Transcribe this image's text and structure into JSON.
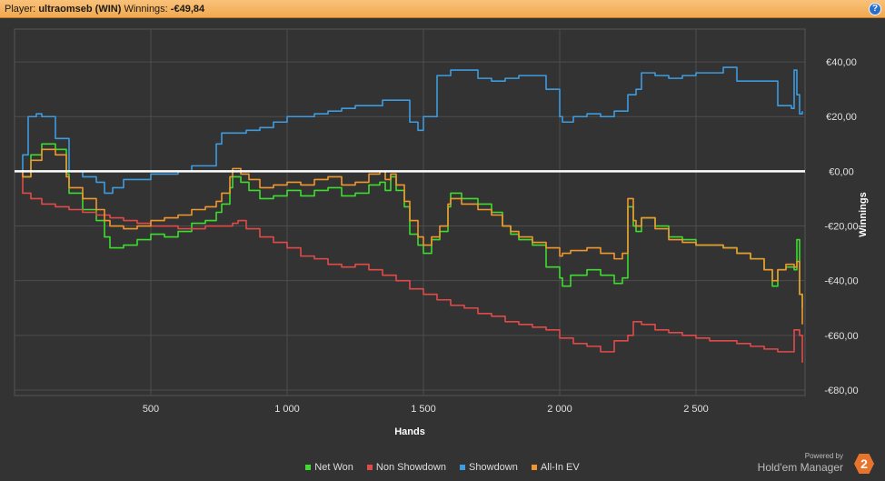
{
  "header": {
    "player_label": "Player:",
    "player_name": "ultraomseb (WIN)",
    "winnings_label": "Winnings:",
    "winnings_value": "-€49,84",
    "help_glyph": "?"
  },
  "chart_data": {
    "type": "line",
    "xlabel": "Hands",
    "ylabel": "Winnings",
    "xlim": [
      0,
      2900
    ],
    "ylim": [
      -82,
      52
    ],
    "x_ticks": [
      500,
      1000,
      1500,
      2000,
      2500
    ],
    "x_tick_labels": [
      "500",
      "1 000",
      "1 500",
      "2 000",
      "2 500"
    ],
    "y_ticks": [
      40,
      20,
      0,
      -20,
      -40,
      -60,
      -80
    ],
    "y_tick_labels": [
      "€40,00",
      "€20,00",
      "€0,00",
      "-€20,00",
      "-€40,00",
      "-€60,00",
      "-€80,00"
    ],
    "grid": true,
    "legend_position": "bottom",
    "series": [
      {
        "name": "Net Won",
        "color": "#3ddc2e",
        "x": [
          0,
          30,
          60,
          100,
          150,
          190,
          200,
          250,
          300,
          330,
          350,
          400,
          450,
          500,
          550,
          600,
          650,
          700,
          740,
          760,
          790,
          800,
          830,
          860,
          900,
          950,
          1000,
          1050,
          1100,
          1150,
          1200,
          1250,
          1300,
          1340,
          1360,
          1380,
          1400,
          1430,
          1450,
          1480,
          1500,
          1530,
          1560,
          1590,
          1600,
          1640,
          1700,
          1750,
          1790,
          1820,
          1850,
          1900,
          1950,
          2000,
          2010,
          2040,
          2100,
          2150,
          2200,
          2230,
          2250,
          2270,
          2280,
          2300,
          2350,
          2400,
          2450,
          2500,
          2550,
          2600,
          2650,
          2700,
          2750,
          2780,
          2800,
          2830,
          2860,
          2870,
          2880,
          2890
        ],
        "y": [
          0,
          -2,
          6,
          10,
          8,
          -1,
          -8,
          -14,
          -18,
          -24,
          -28,
          -27,
          -25,
          -23,
          -24,
          -22,
          -19,
          -18,
          -15,
          -12,
          -6,
          -2,
          -4,
          -7,
          -10,
          -9,
          -7,
          -9,
          -7,
          -6,
          -9,
          -8,
          -5,
          -4,
          -7,
          -2,
          -7,
          -13,
          -23,
          -27,
          -30,
          -25,
          -22,
          -13,
          -8,
          -10,
          -12,
          -15,
          -20,
          -23,
          -25,
          -27,
          -35,
          -39,
          -42,
          -38,
          -36,
          -38,
          -41,
          -39,
          -13,
          -20,
          -22,
          -17,
          -20,
          -24,
          -25,
          -27,
          -27,
          -28,
          -30,
          -32,
          -36,
          -42,
          -36,
          -35,
          -36,
          -25,
          -45,
          -50
        ]
      },
      {
        "name": "Non Showdown",
        "color": "#e24a4a",
        "x": [
          0,
          30,
          60,
          100,
          150,
          200,
          250,
          300,
          350,
          400,
          450,
          500,
          550,
          600,
          650,
          700,
          750,
          800,
          820,
          850,
          900,
          950,
          1000,
          1050,
          1100,
          1150,
          1200,
          1250,
          1300,
          1350,
          1400,
          1450,
          1500,
          1550,
          1600,
          1650,
          1700,
          1750,
          1800,
          1850,
          1900,
          1950,
          2000,
          2050,
          2100,
          2150,
          2200,
          2250,
          2270,
          2300,
          2350,
          2400,
          2450,
          2500,
          2550,
          2600,
          2650,
          2700,
          2750,
          2800,
          2850,
          2860,
          2880,
          2890
        ],
        "y": [
          0,
          -8,
          -10,
          -12,
          -13,
          -14,
          -15,
          -16,
          -17,
          -18,
          -19,
          -20,
          -20,
          -21,
          -21,
          -20,
          -20,
          -19,
          -18,
          -21,
          -24,
          -26,
          -28,
          -31,
          -32,
          -34,
          -35,
          -34,
          -36,
          -38,
          -40,
          -43,
          -45,
          -47,
          -49,
          -50,
          -52,
          -53,
          -55,
          -56,
          -57,
          -58,
          -61,
          -63,
          -64,
          -66,
          -62,
          -60,
          -55,
          -56,
          -58,
          -59,
          -60,
          -61,
          -62,
          -62,
          -63,
          -64,
          -65,
          -66,
          -66,
          -58,
          -60,
          -70
        ]
      },
      {
        "name": "Showdown",
        "color": "#3d9be0",
        "x": [
          0,
          30,
          50,
          80,
          100,
          150,
          200,
          250,
          300,
          330,
          360,
          400,
          450,
          500,
          550,
          600,
          650,
          700,
          740,
          760,
          800,
          850,
          900,
          950,
          1000,
          1050,
          1100,
          1150,
          1200,
          1250,
          1300,
          1350,
          1400,
          1450,
          1480,
          1500,
          1550,
          1600,
          1650,
          1700,
          1750,
          1800,
          1850,
          1900,
          1950,
          2000,
          2010,
          2050,
          2100,
          2150,
          2200,
          2250,
          2280,
          2300,
          2350,
          2400,
          2450,
          2500,
          2550,
          2600,
          2650,
          2700,
          2750,
          2800,
          2850,
          2860,
          2870,
          2880,
          2890
        ],
        "y": [
          0,
          6,
          20,
          21,
          20,
          12,
          0,
          -2,
          -4,
          -8,
          -6,
          -3,
          -3,
          -1,
          -1,
          0,
          2,
          2,
          10,
          14,
          14,
          15,
          16,
          18,
          20,
          20,
          21,
          22,
          23,
          24,
          24,
          26,
          26,
          18,
          15,
          20,
          35,
          37,
          37,
          34,
          33,
          34,
          35,
          35,
          30,
          20,
          18,
          20,
          21,
          20,
          22,
          28,
          30,
          36,
          35,
          34,
          35,
          36,
          36,
          38,
          33,
          33,
          33,
          24,
          23,
          37,
          28,
          21,
          22
        ]
      },
      {
        "name": "All-In EV",
        "color": "#f0962e",
        "x": [
          0,
          30,
          60,
          100,
          150,
          190,
          200,
          250,
          300,
          330,
          350,
          400,
          450,
          500,
          550,
          600,
          650,
          700,
          740,
          760,
          790,
          800,
          830,
          860,
          900,
          950,
          1000,
          1050,
          1100,
          1150,
          1200,
          1250,
          1300,
          1340,
          1360,
          1380,
          1400,
          1430,
          1450,
          1480,
          1500,
          1530,
          1560,
          1590,
          1600,
          1640,
          1700,
          1750,
          1790,
          1820,
          1850,
          1900,
          1950,
          2000,
          2010,
          2040,
          2100,
          2150,
          2200,
          2230,
          2250,
          2270,
          2280,
          2300,
          2350,
          2400,
          2450,
          2500,
          2550,
          2600,
          2650,
          2700,
          2750,
          2780,
          2800,
          2830,
          2860,
          2870,
          2880,
          2890
        ],
        "y": [
          0,
          -2,
          4,
          8,
          6,
          -2,
          -6,
          -10,
          -14,
          -18,
          -20,
          -21,
          -20,
          -18,
          -17,
          -16,
          -14,
          -13,
          -11,
          -8,
          -2,
          1,
          -1,
          -3,
          -6,
          -5,
          -4,
          -5,
          -3,
          -2,
          -5,
          -4,
          -1,
          0,
          -3,
          -1,
          -5,
          -11,
          -18,
          -24,
          -27,
          -24,
          -20,
          -12,
          -10,
          -12,
          -14,
          -16,
          -20,
          -22,
          -24,
          -26,
          -28,
          -31,
          -30,
          -29,
          -28,
          -30,
          -32,
          -30,
          -10,
          -18,
          -20,
          -17,
          -21,
          -25,
          -26,
          -27,
          -27,
          -28,
          -30,
          -32,
          -36,
          -40,
          -36,
          -34,
          -35,
          -33,
          -45,
          -56
        ]
      }
    ]
  },
  "legend": {
    "items": [
      "Net Won",
      "Non Showdown",
      "Showdown",
      "All-In EV"
    ]
  },
  "brand": {
    "powered_by": "Powered by",
    "name": "Hold'em Manager",
    "logo_glyph": "2",
    "accent_color": "#e8742c"
  }
}
